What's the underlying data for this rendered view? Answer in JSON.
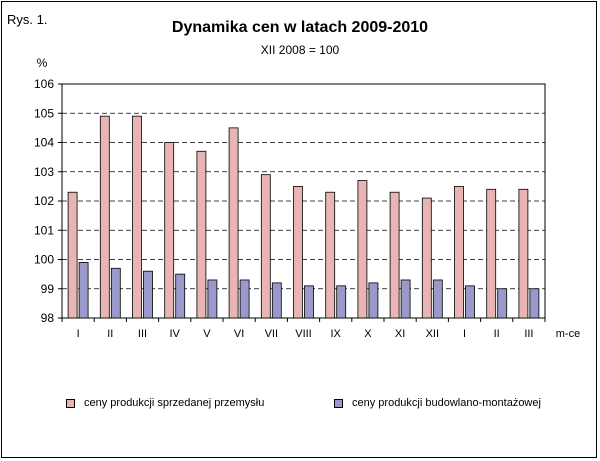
{
  "figure_label": "Rys. 1.",
  "colors": {
    "series1": "#e8b5b5",
    "series2": "#9a99c9",
    "plot_bg": "#ffffff",
    "grid": "#000000"
  },
  "chart_data": {
    "type": "bar",
    "title": "Dynamika cen w latach 2009-2010",
    "subtitle": "XII 2008 = 100",
    "ylabel": "%",
    "xlabel": "m-ce",
    "ylim": [
      98,
      106
    ],
    "yticks": [
      98,
      99,
      100,
      101,
      102,
      103,
      104,
      105,
      106
    ],
    "grid": "dashed horizontal",
    "legend_position": "bottom",
    "categories": [
      "I",
      "II",
      "III",
      "IV",
      "V",
      "VI",
      "VII",
      "VIII",
      "IX",
      "X",
      "XI",
      "XII",
      "I",
      "II",
      "III"
    ],
    "series": [
      {
        "name": "ceny produkcji sprzedanej przemysłu",
        "values": [
          102.3,
          104.9,
          104.9,
          104.0,
          103.7,
          104.5,
          102.9,
          102.5,
          102.3,
          102.7,
          102.3,
          102.1,
          102.5,
          102.4,
          102.4
        ]
      },
      {
        "name": "ceny produkcji budowlano-montażowej",
        "values": [
          99.9,
          99.7,
          99.6,
          99.5,
          99.3,
          99.3,
          99.2,
          99.1,
          99.1,
          99.2,
          99.3,
          99.3,
          99.1,
          99.0,
          99.0
        ]
      }
    ]
  }
}
